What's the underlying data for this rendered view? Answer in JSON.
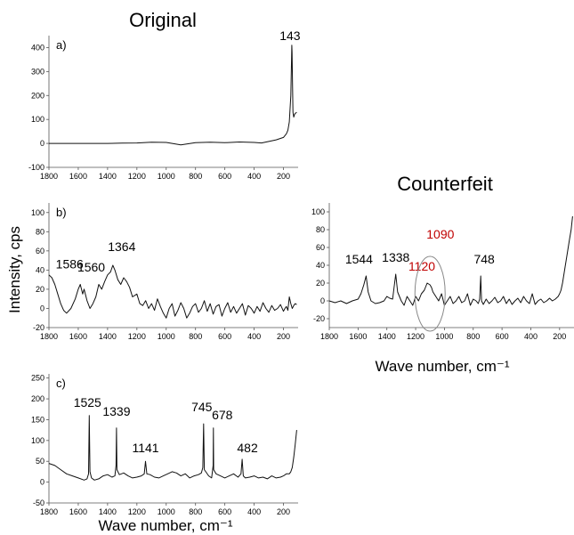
{
  "headings": {
    "original": "Original",
    "counterfeit": "Counterfeit"
  },
  "y_axis_title": "Intensity, cps",
  "x_axis_title": "Wave number, cm⁻¹",
  "chart_data": [
    {
      "id": "a",
      "panel_label": "a)",
      "type": "line",
      "xlim": [
        1800,
        100
      ],
      "ylim": [
        -100,
        450
      ],
      "x_reversed": true,
      "xticks": [
        1800,
        1600,
        1400,
        1200,
        1000,
        800,
        600,
        400,
        200
      ],
      "yticks": [
        -100,
        0,
        100,
        200,
        300,
        400
      ],
      "series": [
        {
          "x": [
            1800,
            1700,
            1600,
            1500,
            1400,
            1300,
            1200,
            1100,
            1000,
            900,
            800,
            700,
            600,
            500,
            400,
            350,
            300,
            250,
            200,
            180,
            170,
            160,
            150,
            145,
            143,
            141,
            138,
            135,
            130,
            125,
            120,
            110
          ],
          "y": [
            0,
            0,
            0,
            0,
            0,
            1,
            2,
            5,
            4,
            -6,
            3,
            5,
            3,
            6,
            4,
            2,
            8,
            15,
            25,
            40,
            55,
            90,
            200,
            350,
            410,
            380,
            250,
            130,
            110,
            120,
            125,
            130
          ]
        }
      ],
      "annotations": [
        {
          "text": "143",
          "x": 143,
          "y": 410,
          "color": "#000000"
        }
      ]
    },
    {
      "id": "b",
      "panel_label": "b)",
      "type": "line",
      "xlim": [
        1800,
        100
      ],
      "ylim": [
        -20,
        110
      ],
      "x_reversed": true,
      "xticks": [
        1800,
        1600,
        1400,
        1200,
        1000,
        800,
        600,
        400,
        200
      ],
      "yticks": [
        -20,
        0,
        20,
        40,
        60,
        80,
        100
      ],
      "series": [
        {
          "x": [
            1800,
            1780,
            1760,
            1740,
            1720,
            1700,
            1680,
            1650,
            1620,
            1600,
            1586,
            1570,
            1560,
            1540,
            1520,
            1500,
            1480,
            1460,
            1440,
            1420,
            1400,
            1380,
            1364,
            1350,
            1330,
            1310,
            1290,
            1270,
            1250,
            1230,
            1200,
            1180,
            1160,
            1140,
            1120,
            1100,
            1080,
            1060,
            1040,
            1020,
            1000,
            980,
            960,
            940,
            920,
            900,
            880,
            860,
            840,
            820,
            800,
            780,
            760,
            740,
            720,
            700,
            680,
            660,
            640,
            620,
            600,
            580,
            560,
            540,
            520,
            500,
            480,
            460,
            440,
            420,
            400,
            380,
            360,
            340,
            320,
            300,
            280,
            260,
            240,
            220,
            200,
            190,
            180,
            170,
            160,
            150,
            140,
            130,
            120,
            110
          ],
          "y": [
            35,
            32,
            25,
            15,
            5,
            -2,
            -5,
            0,
            10,
            20,
            25,
            15,
            20,
            8,
            0,
            5,
            12,
            25,
            20,
            28,
            35,
            38,
            45,
            40,
            30,
            25,
            32,
            28,
            22,
            12,
            15,
            5,
            3,
            8,
            0,
            5,
            -2,
            10,
            2,
            -5,
            -10,
            0,
            5,
            -8,
            -2,
            6,
            0,
            -10,
            -5,
            2,
            5,
            -4,
            0,
            8,
            -3,
            5,
            -6,
            2,
            4,
            -8,
            0,
            6,
            -4,
            2,
            -5,
            0,
            5,
            -7,
            3,
            0,
            -5,
            2,
            -3,
            6,
            0,
            -4,
            3,
            -2,
            0,
            4,
            -3,
            0,
            2,
            -2,
            12,
            5,
            0,
            3,
            5,
            4
          ]
        }
      ],
      "annotations": [
        {
          "text": "1586",
          "x": 1586,
          "y": 25,
          "color": "#000000"
        },
        {
          "text": "1560",
          "x": 1560,
          "y": 20,
          "color": "#000000"
        },
        {
          "text": "1364",
          "x": 1364,
          "y": 45,
          "color": "#000000"
        }
      ]
    },
    {
      "id": "c",
      "panel_label": "c)",
      "type": "line",
      "xlim": [
        1800,
        100
      ],
      "ylim": [
        -50,
        260
      ],
      "x_reversed": true,
      "xticks": [
        1800,
        1600,
        1400,
        1200,
        1000,
        800,
        600,
        400,
        200
      ],
      "yticks": [
        -50,
        0,
        50,
        100,
        150,
        200,
        250
      ],
      "series": [
        {
          "x": [
            1800,
            1760,
            1720,
            1680,
            1640,
            1600,
            1560,
            1540,
            1530,
            1525,
            1520,
            1510,
            1490,
            1460,
            1430,
            1400,
            1370,
            1350,
            1342,
            1339,
            1336,
            1320,
            1290,
            1260,
            1230,
            1200,
            1170,
            1150,
            1141,
            1132,
            1110,
            1080,
            1050,
            1020,
            990,
            960,
            930,
            900,
            870,
            840,
            810,
            780,
            760,
            750,
            745,
            740,
            730,
            710,
            690,
            680,
            678,
            676,
            660,
            630,
            600,
            570,
            540,
            510,
            490,
            482,
            474,
            460,
            430,
            400,
            370,
            340,
            310,
            280,
            250,
            220,
            200,
            180,
            160,
            150,
            140,
            130,
            120,
            110
          ],
          "y": [
            45,
            40,
            30,
            20,
            15,
            10,
            5,
            8,
            20,
            160,
            25,
            10,
            5,
            8,
            15,
            18,
            12,
            15,
            40,
            130,
            30,
            18,
            22,
            15,
            10,
            12,
            15,
            20,
            50,
            20,
            18,
            12,
            10,
            15,
            20,
            25,
            22,
            15,
            20,
            10,
            15,
            18,
            22,
            35,
            140,
            30,
            25,
            15,
            10,
            40,
            130,
            30,
            20,
            15,
            10,
            15,
            20,
            12,
            20,
            55,
            15,
            10,
            12,
            15,
            10,
            12,
            8,
            15,
            10,
            12,
            15,
            20,
            20,
            25,
            35,
            60,
            90,
            125
          ]
        }
      ],
      "annotations": [
        {
          "text": "1525",
          "x": 1525,
          "y": 160,
          "color": "#000000"
        },
        {
          "text": "1339",
          "x": 1339,
          "y": 130,
          "color": "#000000"
        },
        {
          "text": "1141",
          "x": 1141,
          "y": 50,
          "color": "#000000"
        },
        {
          "text": "745",
          "x": 745,
          "y": 140,
          "color": "#000000"
        },
        {
          "text": "678",
          "x": 678,
          "y": 130,
          "color": "#000000"
        },
        {
          "text": "482",
          "x": 482,
          "y": 55,
          "color": "#000000"
        }
      ]
    },
    {
      "id": "counterfeit",
      "panel_label": "",
      "type": "line",
      "xlim": [
        1800,
        100
      ],
      "ylim": [
        -30,
        110
      ],
      "x_reversed": true,
      "xticks": [
        1800,
        1600,
        1400,
        1200,
        1000,
        800,
        600,
        400,
        200
      ],
      "yticks": [
        -20,
        0,
        20,
        40,
        60,
        80,
        100
      ],
      "series": [
        {
          "x": [
            1800,
            1760,
            1720,
            1680,
            1640,
            1600,
            1580,
            1560,
            1544,
            1530,
            1510,
            1480,
            1450,
            1420,
            1400,
            1380,
            1360,
            1350,
            1338,
            1325,
            1300,
            1280,
            1260,
            1240,
            1220,
            1200,
            1180,
            1160,
            1140,
            1120,
            1100,
            1090,
            1080,
            1060,
            1040,
            1020,
            1000,
            980,
            960,
            940,
            920,
            900,
            880,
            860,
            840,
            820,
            800,
            780,
            765,
            755,
            748,
            742,
            730,
            710,
            690,
            670,
            650,
            630,
            610,
            590,
            570,
            550,
            530,
            510,
            490,
            470,
            450,
            430,
            410,
            390,
            370,
            350,
            330,
            310,
            290,
            270,
            250,
            230,
            210,
            200,
            190,
            180,
            170,
            160,
            150,
            140,
            130,
            120,
            110
          ],
          "y": [
            0,
            -2,
            0,
            -3,
            0,
            2,
            8,
            18,
            28,
            10,
            0,
            -3,
            -2,
            0,
            5,
            3,
            2,
            15,
            30,
            10,
            0,
            -5,
            5,
            0,
            -5,
            5,
            0,
            8,
            12,
            20,
            18,
            15,
            10,
            5,
            0,
            8,
            -5,
            0,
            5,
            -3,
            0,
            5,
            -2,
            0,
            8,
            -5,
            2,
            0,
            -3,
            2,
            28,
            0,
            -4,
            2,
            -3,
            0,
            4,
            -2,
            0,
            5,
            -3,
            2,
            -4,
            0,
            3,
            -2,
            5,
            0,
            -3,
            8,
            -4,
            0,
            2,
            -2,
            0,
            3,
            0,
            2,
            5,
            8,
            12,
            20,
            30,
            40,
            50,
            60,
            70,
            80,
            95
          ]
        }
      ],
      "annotations": [
        {
          "text": "1544",
          "x": 1544,
          "y": 28,
          "color": "#000000"
        },
        {
          "text": "1338",
          "x": 1338,
          "y": 30,
          "color": "#000000"
        },
        {
          "text": "1090",
          "x": 1090,
          "y": 48,
          "color": "#c00000"
        },
        {
          "text": "1120",
          "x": 1120,
          "y": 20,
          "color": "#c00000"
        },
        {
          "text": "748",
          "x": 748,
          "y": 28,
          "color": "#000000"
        }
      ]
    }
  ]
}
